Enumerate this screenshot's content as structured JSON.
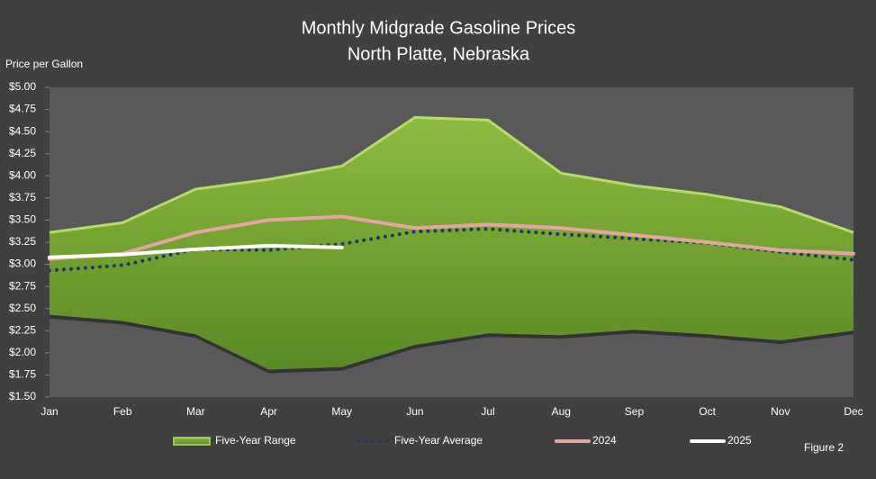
{
  "chart_data": {
    "type": "line",
    "title": "Monthly Midgrade Gasoline Prices",
    "subtitle": "North Platte, Nebraska",
    "y_label": "Price per Gallon",
    "note": "Figure 2",
    "categories": [
      "Jan",
      "Feb",
      "Mar",
      "Apr",
      "May",
      "Jun",
      "Jul",
      "Aug",
      "Sep",
      "Oct",
      "Nov",
      "Dec"
    ],
    "range": {
      "name": "Five-Year Range",
      "color": "#7fab38",
      "high": [
        3.36,
        3.47,
        3.85,
        3.96,
        4.11,
        4.66,
        4.63,
        4.03,
        3.89,
        3.79,
        3.65,
        3.36
      ],
      "low": [
        2.43,
        2.36,
        2.21,
        1.81,
        1.84,
        2.09,
        2.22,
        2.2,
        2.26,
        2.21,
        2.14,
        2.25
      ]
    },
    "series": [
      {
        "name": "Five-Year Average",
        "color": "#1f3864",
        "dash": true,
        "values": [
          2.93,
          2.99,
          3.17,
          3.16,
          3.23,
          3.37,
          3.4,
          3.34,
          3.29,
          3.24,
          3.14,
          3.05
        ]
      },
      {
        "name": "2024",
        "color": "#e6a3a3",
        "values": [
          3.06,
          3.12,
          3.36,
          3.5,
          3.54,
          3.41,
          3.45,
          3.41,
          3.33,
          3.25,
          3.16,
          3.12
        ]
      },
      {
        "name": "2025",
        "color": "#ffffff",
        "values": [
          3.08,
          3.11,
          3.17,
          3.21,
          3.19,
          null,
          null,
          null,
          null,
          null,
          null,
          null
        ]
      }
    ],
    "ylim": [
      1.5,
      5.0
    ],
    "yticks": [
      {
        "value": 1.5,
        "label": "$1.50"
      },
      {
        "value": 1.75,
        "label": "$1.75"
      },
      {
        "value": 2.0,
        "label": "$2.00"
      },
      {
        "value": 2.25,
        "label": "$2.25"
      },
      {
        "value": 2.5,
        "label": "$2.50"
      },
      {
        "value": 2.75,
        "label": "$2.75"
      },
      {
        "value": 3.0,
        "label": "$3.00"
      },
      {
        "value": 3.25,
        "label": "$3.25"
      },
      {
        "value": 3.5,
        "label": "$3.50"
      },
      {
        "value": 3.75,
        "label": "$3.75"
      },
      {
        "value": 4.0,
        "label": "$4.00"
      },
      {
        "value": 4.25,
        "label": "$4.25"
      },
      {
        "value": 4.5,
        "label": "$4.50"
      },
      {
        "value": 4.75,
        "label": "$4.75"
      },
      {
        "value": 5.0,
        "label": "$5.00"
      }
    ],
    "grid": false
  }
}
